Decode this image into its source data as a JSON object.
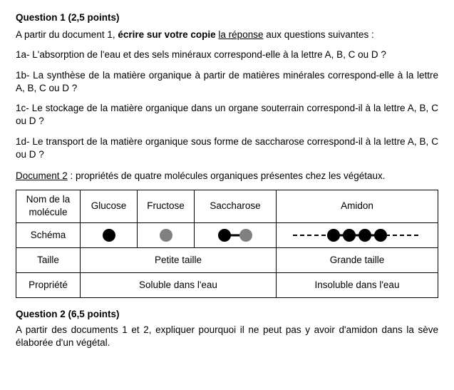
{
  "q1": {
    "heading": "Question 1 (2,5 points)",
    "intro_pre": "A partir du document 1, ",
    "intro_bold": "écrire sur votre copie ",
    "intro_underlined": "la réponse",
    "intro_post": " aux questions suivantes :",
    "sub": [
      "1a- L'absorption de l'eau et des sels minéraux correspond-elle à la lettre A, B, C ou D ?",
      "1b- La synthèse de la matière organique à partir de matières minérales correspond-elle à la lettre A, B, C ou D ?",
      "1c- Le stockage de la matière organique dans un organe souterrain correspond-il à la lettre A, B, C ou D ?",
      "1d- Le transport de la matière organique sous forme de saccharose correspond-il à la lettre A, B, C ou D ?"
    ]
  },
  "doc2": {
    "title_underlined": "Document 2",
    "title_rest": " : propriétés de quatre molécules organiques présentes chez les végétaux."
  },
  "table": {
    "row_labels": {
      "name": "Nom de la molécule",
      "schema": "Schéma",
      "size": "Taille",
      "prop": "Propriété"
    },
    "cols": [
      "Glucose",
      "Fructose",
      "Saccharose",
      "Amidon"
    ],
    "size_small": "Petite taille",
    "size_big": "Grande taille",
    "prop_soluble": "Soluble dans l'eau",
    "prop_insoluble": "Insoluble dans l'eau",
    "schema": {
      "background": "#ffffff",
      "colors": {
        "black": "#000000",
        "grey": "#808080",
        "line": "#000000"
      },
      "circle_radius": 9,
      "line_width": 3,
      "dash_width": 2,
      "glucose": {
        "type": "single",
        "fill": "black"
      },
      "fructose": {
        "type": "single",
        "fill": "grey"
      },
      "saccharose": {
        "type": "pair",
        "fills": [
          "black",
          "grey"
        ],
        "gap": 30
      },
      "amidon": {
        "type": "chain",
        "count": 4,
        "fill": "black",
        "gap": 22,
        "dashed_ends": true
      }
    }
  },
  "q2": {
    "heading": "Question 2 (6,5 points)",
    "text": "A partir des documents 1 et 2, expliquer pourquoi il ne peut pas y avoir d'amidon dans la sève élaborée d'un végétal."
  }
}
